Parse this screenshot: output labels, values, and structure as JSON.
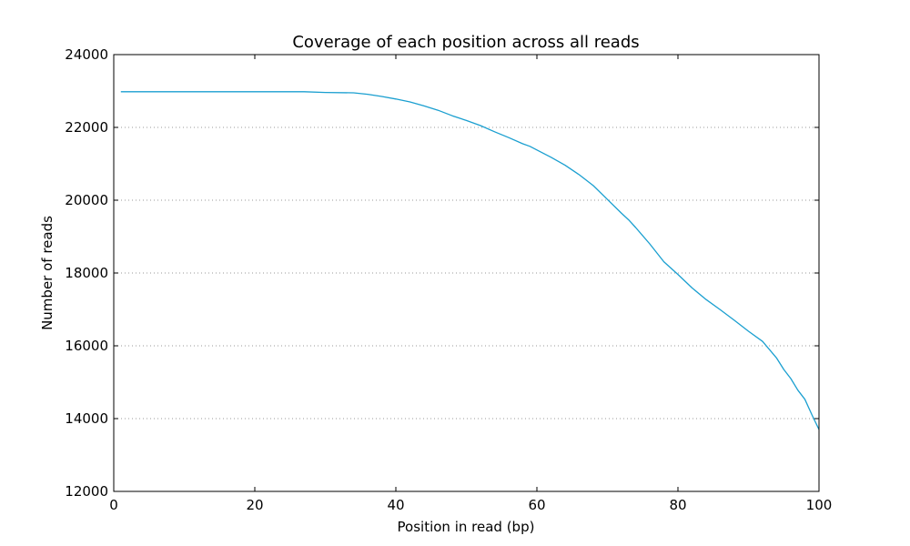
{
  "chart_data": {
    "type": "line",
    "title": "Coverage of each position across all reads",
    "xlabel": "Position in read (bp)",
    "ylabel": "Number of reads",
    "xlim": [
      0,
      100
    ],
    "ylim": [
      12000,
      24000
    ],
    "xticks": [
      0,
      20,
      40,
      60,
      80,
      100
    ],
    "yticks": [
      12000,
      14000,
      16000,
      18000,
      20000,
      22000,
      24000
    ],
    "xtick_labels": [
      "0",
      "20",
      "40",
      "60",
      "80",
      "100"
    ],
    "ytick_labels": [
      "12000",
      "14000",
      "16000",
      "18000",
      "20000",
      "22000",
      "24000"
    ],
    "grid": "horizontal dotted",
    "line_color": "#1a9fd0",
    "series": [
      {
        "x": [
          1,
          5,
          10,
          15,
          20,
          25,
          27,
          30,
          34,
          36,
          38,
          40,
          42,
          44,
          46,
          48,
          50,
          52,
          54,
          56,
          58,
          59,
          60,
          62,
          64,
          66,
          68,
          70,
          72,
          73,
          74,
          76,
          78,
          80,
          82,
          84,
          86,
          88,
          90,
          92,
          94,
          95,
          96,
          97,
          98,
          99,
          100
        ],
        "y": [
          22980,
          22980,
          22980,
          22980,
          22980,
          22980,
          22980,
          22960,
          22950,
          22910,
          22850,
          22780,
          22700,
          22590,
          22470,
          22320,
          22190,
          22050,
          21880,
          21720,
          21550,
          21480,
          21380,
          21180,
          20960,
          20700,
          20400,
          20020,
          19640,
          19460,
          19250,
          18800,
          18310,
          17960,
          17590,
          17270,
          16990,
          16700,
          16400,
          16120,
          15660,
          15350,
          15100,
          14780,
          14530,
          14100,
          13700
        ]
      }
    ]
  }
}
